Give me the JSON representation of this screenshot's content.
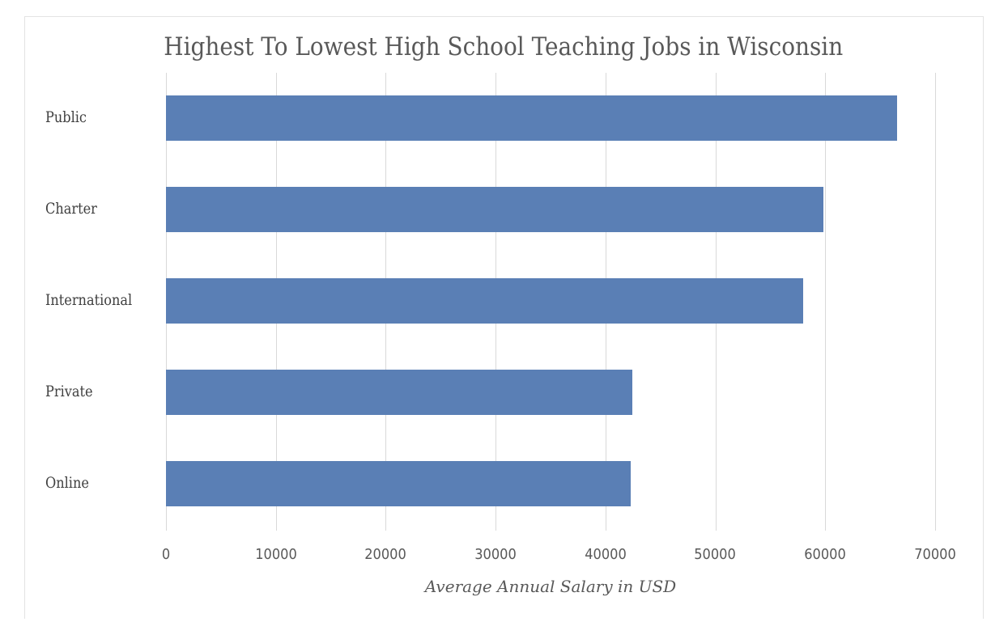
{
  "chart_data": {
    "type": "bar",
    "orientation": "horizontal",
    "title": "Highest To Lowest High School Teaching Jobs in Wisconsin",
    "xlabel": "Average Annual Salary in USD",
    "ylabel": "",
    "categories": [
      "Public",
      "Charter",
      "International",
      "Private",
      "Online"
    ],
    "values": [
      66500,
      59800,
      58000,
      42450,
      42300
    ],
    "xlim": [
      0,
      70000
    ],
    "x_ticks": [
      "0",
      "10000",
      "20000",
      "30000",
      "40000",
      "50000",
      "60000",
      "70000"
    ],
    "grid": true,
    "legend": null,
    "bar_color": "#5a7fb5"
  }
}
